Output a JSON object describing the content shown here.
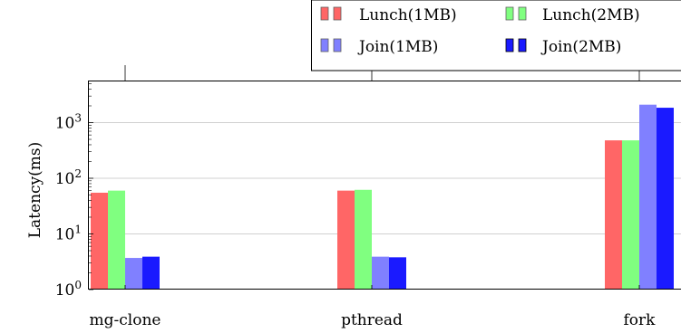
{
  "chart_data": {
    "type": "bar",
    "y_scale": "log",
    "ylabel": "Latency(ms)",
    "ylim": [
      1,
      5000
    ],
    "categories": [
      "mg-clone",
      "pthread",
      "fork"
    ],
    "y_ticks": [
      {
        "value": 1,
        "base": "10",
        "exp": "0"
      },
      {
        "value": 10,
        "base": "10",
        "exp": "1"
      },
      {
        "value": 100,
        "base": "10",
        "exp": "2"
      },
      {
        "value": 1000,
        "base": "10",
        "exp": "3"
      }
    ],
    "grid": "horizontal major",
    "legend_position": "top-right, outside plot",
    "series": [
      {
        "name": "Lunch(1MB)",
        "color": "#ff6666",
        "values": [
          55,
          60,
          480
        ]
      },
      {
        "name": "Lunch(2MB)",
        "color": "#80ff80",
        "values": [
          60,
          62,
          480
        ]
      },
      {
        "name": "Join(1MB)",
        "color": "#8080ff",
        "values": [
          3.7,
          3.9,
          2100
        ]
      },
      {
        "name": "Join(2MB)",
        "color": "#1a1aff",
        "values": [
          3.9,
          3.8,
          1850
        ]
      }
    ]
  }
}
